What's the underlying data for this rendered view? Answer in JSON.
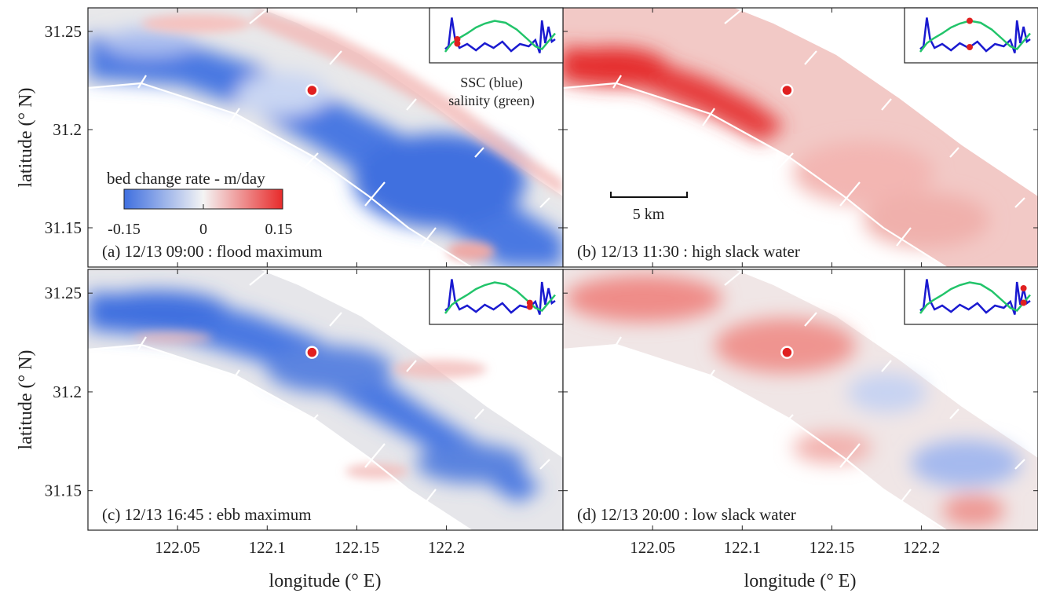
{
  "y_axis_label": "latitude (° N)",
  "x_axis_label": "longitude (° E)",
  "y_ticks": [
    "31.25",
    "31.2",
    "31.15"
  ],
  "x_ticks": [
    "122.05",
    "122.1",
    "122.15",
    "122.2"
  ],
  "x_tick_values": [
    122.05,
    122.1,
    122.15,
    122.2
  ],
  "y_tick_values": [
    31.25,
    31.2,
    31.15
  ],
  "x_range": [
    122.0,
    122.265
  ],
  "y_range": [
    31.13,
    31.262
  ],
  "colorbar": {
    "title": "bed change rate - m/day",
    "ticks": [
      "-0.15",
      "0",
      "0.15"
    ],
    "min": -0.15,
    "max": 0.15,
    "color_low": "#3f6fdf",
    "color_mid": "#f4f4f4",
    "color_high": "#e82a2a"
  },
  "inset_legend": {
    "line1": "SSC (blue)",
    "line2": "salinity (green)",
    "ssc_color": "#1a1ad0",
    "salinity_color": "#22c46a"
  },
  "scale_bar": {
    "label": "5 km"
  },
  "station_marker": {
    "longitude": 122.125,
    "latitude": 31.22,
    "color": "#e02020"
  },
  "panels": [
    {
      "id": "a",
      "label": "(a) 12/13 09:00 : flood maximum",
      "state": "flood",
      "tide_position": 0.11
    },
    {
      "id": "b",
      "label": "(b) 12/13 11:30 : high slack water",
      "state": "high",
      "tide_position": 0.45
    },
    {
      "id": "c",
      "label": "(c) 12/13 16:45 : ebb maximum",
      "state": "ebb",
      "tide_position": 0.77
    },
    {
      "id": "d",
      "label": "(d) 12/13 20:00 : low slack water",
      "state": "low",
      "tide_position": 0.94
    }
  ]
}
